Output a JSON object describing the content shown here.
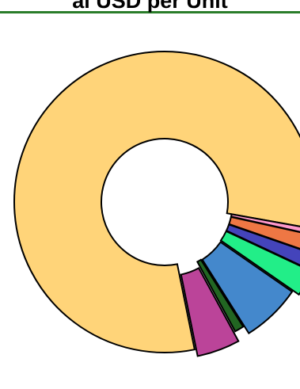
{
  "chart_data": {
    "type": "pie",
    "title": "al USD per Unit",
    "donut_hole": true,
    "slices": [
      {
        "value": 78.6,
        "color": "#ffd479"
      },
      {
        "value": 0.6,
        "color": "#ff99cc"
      },
      {
        "value": 1.8,
        "color": "#ee7744"
      },
      {
        "value": 1.6,
        "color": "#4444bb"
      },
      {
        "value": 2.6,
        "color": "#22ee88"
      },
      {
        "value": 6.2,
        "color": "#4488cc"
      },
      {
        "value": 1.0,
        "color": "#226622"
      },
      {
        "value": 4.6,
        "color": "#bb4499"
      }
    ]
  },
  "colors": {
    "title_rule": "#2a7d2a",
    "outline": "#000000",
    "background": "#ffffff"
  }
}
